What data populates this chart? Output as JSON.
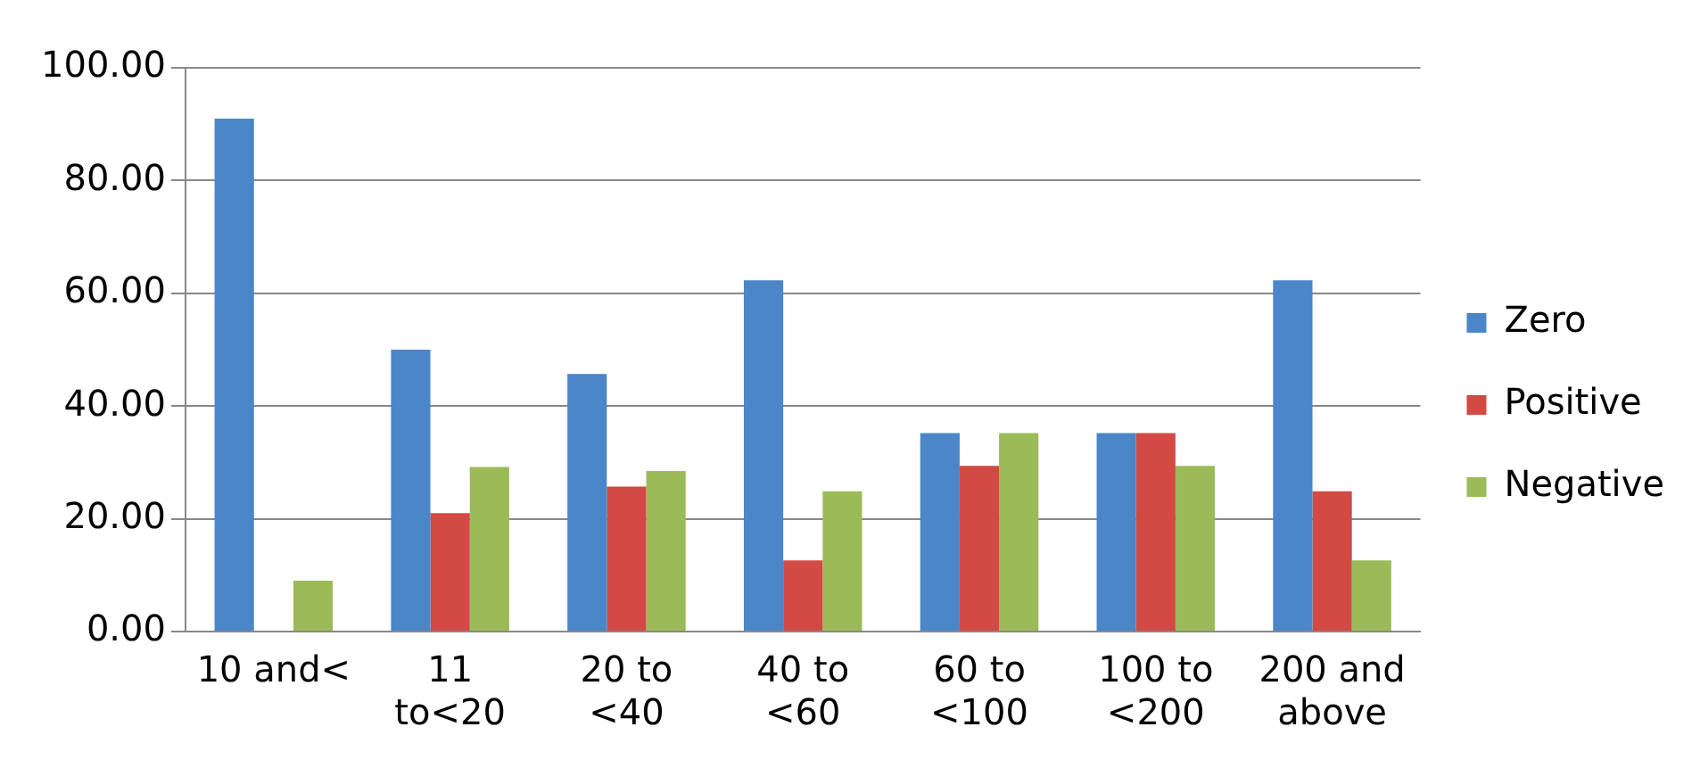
{
  "chart_data": {
    "type": "bar",
    "categories": [
      "10 and<",
      "11 to<20",
      "20 to <40",
      "40 to <60",
      "60 to <100",
      "100 to <200",
      "200 and above"
    ],
    "series": [
      {
        "name": "Zero",
        "color": "#4a86c8",
        "values": [
          91.0,
          50.0,
          45.7,
          62.3,
          35.2,
          35.2,
          62.3
        ]
      },
      {
        "name": "Positive",
        "color": "#d24a43",
        "values": [
          0,
          21.0,
          25.7,
          12.6,
          29.4,
          35.2,
          24.9
        ]
      },
      {
        "name": "Negative",
        "color": "#9bbb59",
        "values": [
          9.0,
          29.2,
          28.5,
          24.9,
          35.2,
          29.4,
          12.6
        ]
      }
    ],
    "ylim": [
      0,
      100
    ],
    "yticks": [
      {
        "value": 0,
        "label": "0.00"
      },
      {
        "value": 20,
        "label": "20.00"
      },
      {
        "value": 40,
        "label": "40.00"
      },
      {
        "value": 60,
        "label": "60.00"
      },
      {
        "value": 80,
        "label": "80.00"
      },
      {
        "value": 100,
        "label": "100.00"
      }
    ],
    "grid": "y",
    "legend": "right"
  }
}
